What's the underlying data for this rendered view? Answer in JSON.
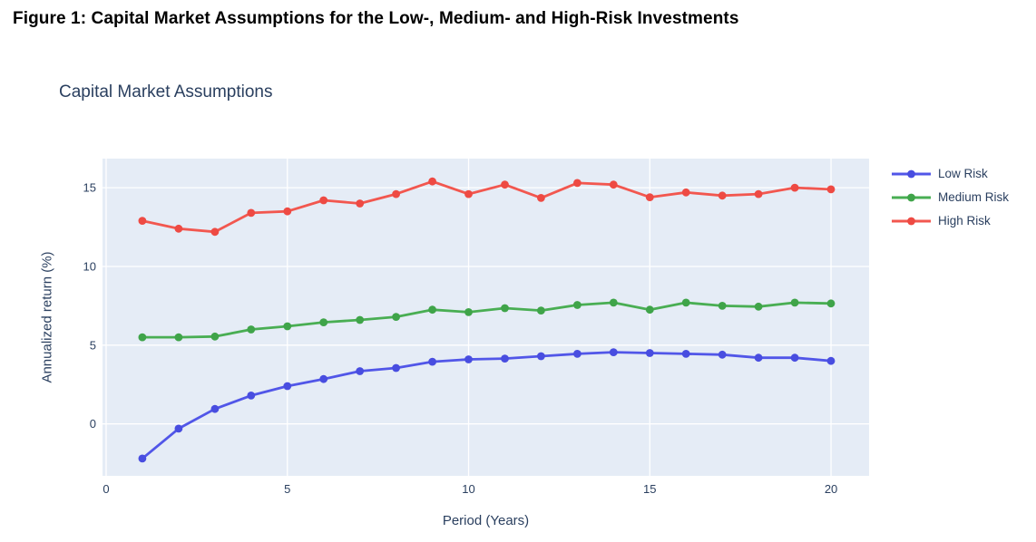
{
  "caption": "Figure 1: Capital Market Assumptions for the Low-, Medium- and High-Risk Investments",
  "chart_data": {
    "type": "line",
    "title": "Capital Market Assumptions",
    "xlabel": "Period (Years)",
    "ylabel": "Annualized return (%)",
    "x": [
      1,
      2,
      3,
      4,
      5,
      6,
      7,
      8,
      9,
      10,
      11,
      12,
      13,
      14,
      15,
      16,
      17,
      18,
      19,
      20
    ],
    "series": [
      {
        "name": "Low Risk",
        "color": "#5156e8",
        "marker_color": "#484de0",
        "values": [
          -2.2,
          -0.3,
          0.95,
          1.8,
          2.4,
          2.85,
          3.35,
          3.55,
          3.95,
          4.1,
          4.15,
          4.3,
          4.45,
          4.55,
          4.5,
          4.45,
          4.4,
          4.2,
          4.2,
          4.0
        ]
      },
      {
        "name": "Medium Risk",
        "color": "#49ae53",
        "marker_color": "#3fa449",
        "values": [
          5.5,
          5.5,
          5.55,
          6.0,
          6.2,
          6.45,
          6.6,
          6.8,
          7.25,
          7.1,
          7.35,
          7.2,
          7.55,
          7.7,
          7.25,
          7.7,
          7.5,
          7.45,
          7.7,
          7.65
        ]
      },
      {
        "name": "High Risk",
        "color": "#f2574f",
        "marker_color": "#ee4a43",
        "values": [
          12.9,
          12.4,
          12.2,
          13.4,
          13.5,
          14.2,
          14.0,
          14.6,
          15.4,
          14.6,
          15.2,
          14.35,
          15.3,
          15.2,
          14.4,
          14.7,
          14.5,
          14.6,
          15.0,
          14.9
        ]
      }
    ],
    "xlim": [
      -0.1,
      21.05
    ],
    "ylim": [
      -3.3,
      16.85
    ],
    "xticks": [
      0,
      5,
      10,
      15,
      20
    ],
    "yticks": [
      0,
      5,
      10,
      15
    ],
    "grid": true,
    "legend_position": "right",
    "plot_bg": "#e5ecf6",
    "grid_color": "#ffffff",
    "text_color": "#2a3f5f"
  }
}
